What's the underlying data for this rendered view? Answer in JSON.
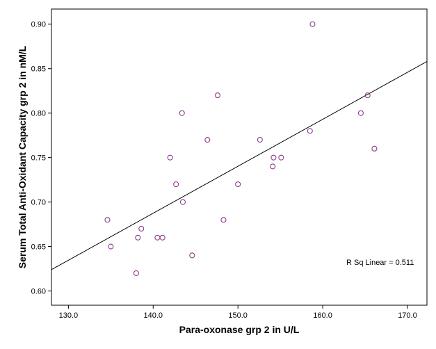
{
  "chart_data": {
    "type": "scatter",
    "title": "",
    "xlabel": "Para-oxonase grp 2 in U/L",
    "ylabel": "Serum Total Anti-Oxidant Capacity grp 2 in nM/L",
    "xlim": [
      128.0,
      172.3
    ],
    "ylim": [
      0.584,
      0.917
    ],
    "x_ticks": [
      130.0,
      140.0,
      150.0,
      160.0,
      170.0
    ],
    "x_tick_labels": [
      "130.0",
      "140.0",
      "150.0",
      "160.0",
      "170.0"
    ],
    "y_ticks": [
      0.6,
      0.65,
      0.7,
      0.75,
      0.8,
      0.85,
      0.9
    ],
    "y_tick_labels": [
      "0.60",
      "0.65",
      "0.70",
      "0.75",
      "0.80",
      "0.85",
      "0.90"
    ],
    "grid": false,
    "marker_color": "#8b3a8b",
    "line_color": "#000000",
    "points": [
      {
        "x": 134.6,
        "y": 0.68
      },
      {
        "x": 135.0,
        "y": 0.65
      },
      {
        "x": 138.0,
        "y": 0.62
      },
      {
        "x": 138.2,
        "y": 0.66
      },
      {
        "x": 138.6,
        "y": 0.67
      },
      {
        "x": 140.5,
        "y": 0.66
      },
      {
        "x": 141.1,
        "y": 0.66
      },
      {
        "x": 142.0,
        "y": 0.75
      },
      {
        "x": 142.7,
        "y": 0.72
      },
      {
        "x": 143.4,
        "y": 0.8
      },
      {
        "x": 143.5,
        "y": 0.7
      },
      {
        "x": 144.6,
        "y": 0.64
      },
      {
        "x": 146.4,
        "y": 0.77
      },
      {
        "x": 147.6,
        "y": 0.82
      },
      {
        "x": 148.3,
        "y": 0.68
      },
      {
        "x": 150.0,
        "y": 0.72
      },
      {
        "x": 152.6,
        "y": 0.77
      },
      {
        "x": 154.1,
        "y": 0.74
      },
      {
        "x": 154.2,
        "y": 0.75
      },
      {
        "x": 155.1,
        "y": 0.75
      },
      {
        "x": 158.5,
        "y": 0.78
      },
      {
        "x": 158.8,
        "y": 0.9
      },
      {
        "x": 164.5,
        "y": 0.8
      },
      {
        "x": 165.3,
        "y": 0.82
      },
      {
        "x": 166.1,
        "y": 0.76
      }
    ],
    "fit_line": {
      "x1": 128.0,
      "y1": 0.624,
      "x2": 172.3,
      "y2": 0.858
    },
    "annotation": "R Sq Linear = 0.511"
  }
}
